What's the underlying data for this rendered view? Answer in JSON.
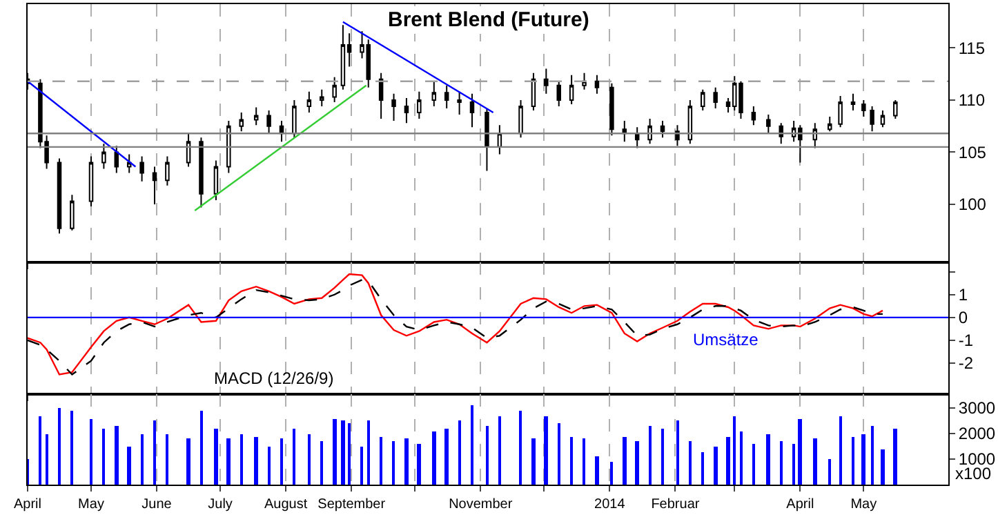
{
  "chart_data": [
    {
      "type": "candlestick",
      "title": "Brent Blend (Future)",
      "color": "#000000",
      "grid": "x",
      "tick_labels": "y",
      "x": [
        "2013-04-01",
        "2013-04-07",
        "2013-04-10",
        "2013-04-16",
        "2013-04-22",
        "2013-05-01",
        "2013-05-07",
        "2013-05-13",
        "2013-05-19",
        "2013-05-25",
        "2013-05-31",
        "2013-06-06",
        "2013-06-16",
        "2013-06-22",
        "2013-06-29",
        "2013-07-05",
        "2013-07-11",
        "2013-07-18",
        "2013-07-24",
        "2013-07-30",
        "2013-08-05",
        "2013-08-12",
        "2013-08-18",
        "2013-08-24",
        "2013-08-28",
        "2013-08-31",
        "2013-09-06",
        "2013-09-09",
        "2013-09-15",
        "2013-09-21",
        "2013-09-27",
        "2013-10-03",
        "2013-10-10",
        "2013-10-16",
        "2013-10-22",
        "2013-10-28",
        "2013-11-04",
        "2013-11-10",
        "2013-11-20",
        "2013-11-26",
        "2013-12-02",
        "2013-12-08",
        "2013-12-14",
        "2013-12-20",
        "2013-12-26",
        "2014-01-02",
        "2014-01-08",
        "2014-01-14",
        "2014-01-20",
        "2014-01-26",
        "2014-02-02",
        "2014-02-08",
        "2014-02-14",
        "2014-02-20",
        "2014-02-26",
        "2014-03-01",
        "2014-03-04",
        "2014-03-10",
        "2014-03-17",
        "2014-03-23",
        "2014-03-29",
        "2014-04-01",
        "2014-04-08",
        "2014-04-15",
        "2014-04-20",
        "2014-04-26",
        "2014-05-01",
        "2014-05-05",
        "2014-05-10",
        "2014-05-16"
      ],
      "ohlc": [
        [
          112.0,
          112.6,
          111.0,
          111.6
        ],
        [
          111.6,
          112.0,
          105.4,
          106.0
        ],
        [
          106.0,
          106.6,
          103.4,
          104.0
        ],
        [
          104.0,
          104.4,
          97.2,
          97.7
        ],
        [
          97.7,
          100.9,
          97.5,
          100.3
        ],
        [
          100.3,
          104.6,
          99.8,
          104.0
        ],
        [
          104.0,
          105.8,
          103.4,
          105.0
        ],
        [
          105.0,
          105.6,
          103.0,
          103.6
        ],
        [
          103.6,
          104.8,
          103.0,
          104.0
        ],
        [
          104.0,
          104.6,
          102.2,
          103.0
        ],
        [
          103.0,
          103.6,
          100.0,
          102.3
        ],
        [
          102.3,
          104.6,
          101.8,
          104.0
        ],
        [
          104.0,
          106.8,
          103.6,
          106.0
        ],
        [
          106.0,
          106.4,
          99.7,
          101.0
        ],
        [
          101.0,
          104.2,
          100.4,
          103.6
        ],
        [
          103.6,
          108.0,
          103.0,
          107.5
        ],
        [
          107.5,
          108.8,
          107.0,
          108.1
        ],
        [
          108.1,
          109.3,
          107.6,
          108.5
        ],
        [
          108.5,
          109.0,
          106.8,
          107.5
        ],
        [
          107.5,
          108.0,
          106.0,
          106.8
        ],
        [
          106.8,
          110.0,
          106.4,
          109.4
        ],
        [
          109.4,
          110.8,
          108.8,
          110.0
        ],
        [
          110.0,
          111.0,
          109.4,
          110.3
        ],
        [
          110.3,
          112.2,
          109.8,
          111.4
        ],
        [
          111.4,
          117.2,
          111.0,
          115.3
        ],
        [
          115.3,
          116.4,
          113.2,
          114.6
        ],
        [
          114.6,
          116.6,
          114.0,
          115.3
        ],
        [
          115.3,
          115.8,
          111.2,
          112.0
        ],
        [
          112.0,
          112.6,
          108.2,
          110.0
        ],
        [
          110.0,
          110.6,
          108.0,
          109.4
        ],
        [
          109.4,
          110.2,
          107.8,
          108.8
        ],
        [
          108.8,
          110.8,
          108.2,
          110.0
        ],
        [
          110.0,
          111.8,
          109.4,
          110.7
        ],
        [
          110.7,
          111.4,
          109.2,
          110.0
        ],
        [
          110.0,
          110.8,
          108.6,
          109.8
        ],
        [
          109.8,
          110.6,
          107.4,
          108.8
        ],
        [
          108.8,
          109.2,
          103.2,
          105.5
        ],
        [
          105.5,
          107.6,
          104.8,
          106.8
        ],
        [
          106.8,
          110.0,
          106.4,
          109.4
        ],
        [
          109.4,
          112.6,
          109.0,
          112.0
        ],
        [
          112.0,
          113.0,
          110.6,
          111.4
        ],
        [
          111.4,
          111.8,
          109.4,
          110.0
        ],
        [
          110.0,
          112.4,
          109.6,
          111.4
        ],
        [
          111.4,
          112.6,
          111.0,
          111.8
        ],
        [
          111.8,
          112.4,
          110.6,
          111.2
        ],
        [
          111.2,
          111.6,
          106.6,
          107.2
        ],
        [
          107.2,
          108.0,
          106.0,
          106.8
        ],
        [
          106.8,
          107.4,
          105.4,
          106.2
        ],
        [
          106.2,
          108.2,
          105.8,
          107.5
        ],
        [
          107.5,
          108.0,
          106.4,
          107.0
        ],
        [
          107.0,
          107.6,
          105.6,
          106.2
        ],
        [
          106.2,
          110.0,
          105.8,
          109.4
        ],
        [
          109.4,
          111.0,
          109.0,
          110.7
        ],
        [
          110.7,
          111.2,
          109.2,
          109.8
        ],
        [
          109.8,
          110.2,
          108.8,
          109.4
        ],
        [
          109.4,
          112.3,
          109.0,
          111.6
        ],
        [
          111.6,
          111.8,
          108.2,
          108.8
        ],
        [
          108.8,
          109.4,
          107.6,
          108.1
        ],
        [
          108.1,
          108.6,
          106.8,
          107.5
        ],
        [
          107.5,
          107.8,
          105.8,
          106.5
        ],
        [
          106.5,
          108.0,
          106.0,
          107.3
        ],
        [
          107.3,
          107.6,
          104.0,
          106.2
        ],
        [
          106.2,
          107.8,
          105.4,
          107.2
        ],
        [
          107.2,
          108.4,
          107.0,
          107.7
        ],
        [
          107.7,
          110.4,
          107.4,
          109.8
        ],
        [
          109.8,
          110.6,
          109.0,
          109.6
        ],
        [
          109.6,
          110.0,
          108.4,
          109.0
        ],
        [
          109.0,
          109.4,
          107.0,
          107.7
        ],
        [
          107.7,
          109.0,
          107.4,
          108.5
        ],
        [
          108.5,
          110.0,
          108.2,
          109.8
        ]
      ],
      "series": [
        {
          "type": "line",
          "color": "#0000ff",
          "x": [
            "2013-04-01",
            "2013-05-22"
          ],
          "values": [
            111.8,
            103.6
          ]
        },
        {
          "type": "line",
          "color": "#0000ff",
          "x": [
            "2013-08-28",
            "2013-11-07"
          ],
          "values": [
            117.5,
            108.8
          ]
        },
        {
          "type": "line",
          "color": "#33cc33",
          "x": [
            "2013-06-19",
            "2013-09-08"
          ],
          "values": [
            99.4,
            111.4
          ]
        }
      ],
      "ref_lines": [
        {
          "axis": "y",
          "value": 106.8,
          "color": "#808080",
          "line_style": "solid"
        },
        {
          "axis": "y",
          "value": 105.5,
          "color": "#808080",
          "line_style": "solid"
        },
        {
          "axis": "y",
          "value": 111.8,
          "color": "#a0a0a0",
          "line_style": "dashed"
        }
      ],
      "xlim": [
        "2013-04-01",
        "2014-06-10"
      ],
      "ylim": [
        94.4,
        119.2
      ],
      "yticks": [
        100,
        105,
        110,
        115
      ],
      "xticks": [
        {
          "value": "2013-04-01",
          "label": null
        },
        {
          "value": "2013-05-01",
          "label": null
        },
        {
          "value": "2013-06-01",
          "label": null
        },
        {
          "value": "2013-07-01",
          "label": null
        },
        {
          "value": "2013-08-01",
          "label": null
        },
        {
          "value": "2013-09-01",
          "label": null
        },
        {
          "value": "2013-10-01",
          "label": null
        },
        {
          "value": "2013-11-01",
          "label": null
        },
        {
          "value": "2013-12-01",
          "label": null
        },
        {
          "value": "2014-01-01",
          "label": null
        },
        {
          "value": "2014-02-01",
          "label": null
        },
        {
          "value": "2014-03-01",
          "label": null
        },
        {
          "value": "2014-04-01",
          "label": null
        },
        {
          "value": "2014-05-01",
          "label": null
        }
      ]
    },
    {
      "type": "line",
      "grid": "x",
      "tick_labels": "y",
      "annotations": [
        "MACD (12/26/9)"
      ],
      "x": [
        "2013-04-01",
        "2013-04-07",
        "2013-04-10",
        "2013-04-16",
        "2013-04-22",
        "2013-05-01",
        "2013-05-07",
        "2013-05-13",
        "2013-05-19",
        "2013-05-25",
        "2013-05-31",
        "2013-06-06",
        "2013-06-16",
        "2013-06-22",
        "2013-06-29",
        "2013-07-05",
        "2013-07-11",
        "2013-07-18",
        "2013-07-24",
        "2013-07-30",
        "2013-08-05",
        "2013-08-12",
        "2013-08-18",
        "2013-08-24",
        "2013-08-28",
        "2013-08-31",
        "2013-09-06",
        "2013-09-09",
        "2013-09-15",
        "2013-09-21",
        "2013-09-27",
        "2013-10-03",
        "2013-10-10",
        "2013-10-16",
        "2013-10-22",
        "2013-10-28",
        "2013-11-04",
        "2013-11-10",
        "2013-11-20",
        "2013-11-26",
        "2013-12-02",
        "2013-12-08",
        "2013-12-14",
        "2013-12-20",
        "2013-12-26",
        "2014-01-02",
        "2014-01-08",
        "2014-01-14",
        "2014-01-20",
        "2014-01-26",
        "2014-02-02",
        "2014-02-08",
        "2014-02-14",
        "2014-02-20",
        "2014-02-26",
        "2014-03-01",
        "2014-03-04",
        "2014-03-10",
        "2014-03-17",
        "2014-03-23",
        "2014-03-29",
        "2014-04-01",
        "2014-04-08",
        "2014-04-15",
        "2014-04-20",
        "2014-04-26",
        "2014-05-01",
        "2014-05-05",
        "2014-05-10"
      ],
      "series": [
        {
          "color": "#ff0000",
          "line_style": "solid",
          "values": [
            -0.9,
            -1.1,
            -1.4,
            -2.5,
            -2.4,
            -1.3,
            -0.6,
            -0.15,
            0.0,
            -0.15,
            -0.3,
            -0.05,
            0.55,
            -0.2,
            -0.15,
            0.75,
            1.15,
            1.35,
            1.15,
            0.9,
            0.6,
            0.8,
            0.85,
            1.3,
            1.65,
            1.9,
            1.85,
            1.5,
            0.1,
            -0.55,
            -0.8,
            -0.6,
            -0.2,
            -0.1,
            -0.3,
            -0.7,
            -1.1,
            -0.6,
            0.6,
            0.85,
            0.8,
            0.45,
            0.2,
            0.5,
            0.55,
            0.2,
            -0.7,
            -1.05,
            -0.7,
            -0.45,
            -0.15,
            0.25,
            0.6,
            0.6,
            0.45,
            0.3,
            0.1,
            -0.35,
            -0.5,
            -0.35,
            -0.35,
            -0.4,
            -0.05,
            0.4,
            0.55,
            0.4,
            0.15,
            0.05,
            0.3
          ]
        },
        {
          "color": "#000000",
          "line_style": "dashed",
          "values": [
            -1.0,
            -1.2,
            -1.4,
            -1.9,
            -2.5,
            -1.9,
            -1.1,
            -0.6,
            -0.3,
            -0.2,
            -0.4,
            -0.2,
            0.1,
            0.2,
            0.0,
            0.4,
            0.8,
            1.2,
            1.1,
            0.95,
            0.8,
            0.75,
            0.8,
            1.0,
            1.2,
            1.4,
            1.65,
            1.6,
            0.8,
            0.1,
            -0.4,
            -0.55,
            -0.35,
            -0.2,
            -0.3,
            -0.45,
            -0.9,
            -0.8,
            -0.1,
            0.4,
            0.7,
            0.6,
            0.35,
            0.4,
            0.5,
            0.35,
            -0.2,
            -0.8,
            -0.75,
            -0.5,
            -0.3,
            0.0,
            0.35,
            0.5,
            0.5,
            0.4,
            0.3,
            -0.1,
            -0.35,
            -0.4,
            -0.35,
            -0.4,
            -0.2,
            0.1,
            0.35,
            0.45,
            0.3,
            0.15,
            0.15
          ]
        }
      ],
      "ref_lines": [
        {
          "axis": "y",
          "value": 0,
          "color": "#0000ff",
          "line_style": "solid"
        }
      ],
      "xlim": [
        "2013-04-01",
        "2014-06-10"
      ],
      "ylim": [
        -3.35,
        2.4
      ],
      "yticks": [
        {
          "value": 2,
          "label": null
        },
        1,
        0,
        -1,
        -2
      ],
      "xticks": [
        {
          "value": "2013-04-01",
          "label": null
        },
        {
          "value": "2013-05-01",
          "label": null
        },
        {
          "value": "2013-06-01",
          "label": null
        },
        {
          "value": "2013-07-01",
          "label": null
        },
        {
          "value": "2013-08-01",
          "label": null
        },
        {
          "value": "2013-09-01",
          "label": null
        },
        {
          "value": "2013-10-01",
          "label": null
        },
        {
          "value": "2013-11-01",
          "label": null
        },
        {
          "value": "2013-12-01",
          "label": null
        },
        {
          "value": "2014-01-01",
          "label": null
        },
        {
          "value": "2014-02-01",
          "label": null
        },
        {
          "value": "2014-03-01",
          "label": null
        },
        {
          "value": "2014-04-01",
          "label": null
        },
        {
          "value": "2014-05-01",
          "label": null
        }
      ]
    },
    {
      "type": "bar",
      "color": "#0000ff",
      "grid": "x",
      "annotations": [
        "Umsätze",
        "x100"
      ],
      "x": [
        "2013-04-01",
        "2013-04-07",
        "2013-04-10",
        "2013-04-16",
        "2013-04-22",
        "2013-05-01",
        "2013-05-07",
        "2013-05-13",
        "2013-05-19",
        "2013-05-25",
        "2013-05-31",
        "2013-06-06",
        "2013-06-16",
        "2013-06-22",
        "2013-06-29",
        "2013-07-05",
        "2013-07-11",
        "2013-07-18",
        "2013-07-24",
        "2013-07-30",
        "2013-08-05",
        "2013-08-12",
        "2013-08-18",
        "2013-08-24",
        "2013-08-28",
        "2013-08-31",
        "2013-09-06",
        "2013-09-09",
        "2013-09-15",
        "2013-09-21",
        "2013-09-27",
        "2013-10-03",
        "2013-10-10",
        "2013-10-16",
        "2013-10-22",
        "2013-10-28",
        "2013-11-04",
        "2013-11-10",
        "2013-11-20",
        "2013-11-26",
        "2013-12-02",
        "2013-12-08",
        "2013-12-14",
        "2013-12-20",
        "2013-12-26",
        "2014-01-02",
        "2014-01-08",
        "2014-01-14",
        "2014-01-20",
        "2014-01-26",
        "2014-02-02",
        "2014-02-08",
        "2014-02-14",
        "2014-02-20",
        "2014-02-26",
        "2014-03-01",
        "2014-03-04",
        "2014-03-10",
        "2014-03-17",
        "2014-03-23",
        "2014-03-29",
        "2014-04-01",
        "2014-04-08",
        "2014-04-15",
        "2014-04-20",
        "2014-04-26",
        "2014-05-01",
        "2014-05-05",
        "2014-05-10",
        "2014-05-16"
      ],
      "values": [
        1000,
        2700,
        2000,
        3000,
        2900,
        2600,
        2200,
        2300,
        1500,
        2000,
        2500,
        2000,
        1800,
        2900,
        2200,
        1800,
        2000,
        1900,
        1500,
        1800,
        2200,
        2000,
        1700,
        2600,
        2500,
        2400,
        1500,
        2500,
        1900,
        1700,
        1800,
        1600,
        2100,
        2200,
        2500,
        3100,
        2300,
        2700,
        2900,
        1800,
        2700,
        2400,
        1900,
        1800,
        1100,
        900,
        1900,
        1700,
        2300,
        2200,
        2500,
        1700,
        1300,
        1500,
        1900,
        2700,
        2100,
        1600,
        2000,
        1700,
        1600,
        2600,
        1800,
        1000,
        2700,
        1900,
        2000,
        2300,
        1400,
        2200
      ],
      "xlim": [
        "2013-04-01",
        "2014-06-10"
      ],
      "ylim": [
        0,
        3550
      ],
      "yticks": [
        1000,
        2000,
        3000
      ],
      "xticks": [
        {
          "value": "2013-04-01",
          "label": "April"
        },
        {
          "value": "2013-05-01",
          "label": "May"
        },
        {
          "value": "2013-06-01",
          "label": "June"
        },
        {
          "value": "2013-07-01",
          "label": "July"
        },
        {
          "value": "2013-08-01",
          "label": "August"
        },
        {
          "value": "2013-09-01",
          "label": "September"
        },
        {
          "value": "2013-10-01",
          "label": null
        },
        {
          "value": "2013-11-01",
          "label": "November"
        },
        {
          "value": "2013-12-01",
          "label": null
        },
        {
          "value": "2014-01-01",
          "label": "2014"
        },
        {
          "value": "2014-02-01",
          "label": "Februar"
        },
        {
          "value": "2014-03-01",
          "label": null
        },
        {
          "value": "2014-04-01",
          "label": "April"
        },
        {
          "value": "2014-05-01",
          "label": "May"
        }
      ]
    }
  ]
}
